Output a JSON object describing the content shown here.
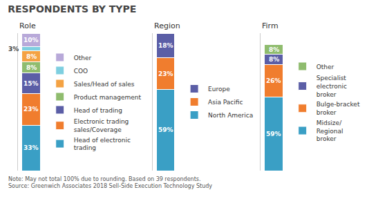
{
  "title": "RESPONDENTS BY TYPE",
  "annotations": [
    "Note: May not total 100% due to rounding. Based on 39 respondents.\nSource: Greenwich Associates 2018 Sell-Side Execution Technology Study"
  ],
  "chart_data": [
    {
      "type": "bar",
      "title": "Role",
      "stacked": true,
      "data_labels": true,
      "legend": "right",
      "categories": [
        null
      ],
      "ylim": [
        0,
        100
      ],
      "grid": false,
      "tick_labels": false,
      "series": [
        {
          "name": "Head of electronic\ntrading",
          "color": "#3a9fc5",
          "values": [
            33
          ],
          "value_labels": [
            "33%"
          ]
        },
        {
          "name": "Electronic trading\nsales/Coverage",
          "color": "#f07d2e",
          "values": [
            23
          ],
          "value_labels": [
            "23%"
          ]
        },
        {
          "name": "Head of trading",
          "color": "#5b5ea6",
          "values": [
            15
          ],
          "value_labels": [
            "15%"
          ]
        },
        {
          "name": "Product management",
          "color": "#8fbc6e",
          "values": [
            8
          ],
          "value_labels": [
            "8%"
          ]
        },
        {
          "name": "Sales/Head of sales",
          "color": "#f4a243",
          "values": [
            8
          ],
          "value_labels": [
            "8%"
          ]
        },
        {
          "name": "COO",
          "color": "#7ecfe0",
          "values": [
            3
          ],
          "value_labels": [
            "3%"
          ]
        },
        {
          "name": "Other",
          "color": "#b8a9d9",
          "values": [
            10
          ],
          "value_labels": [
            "10%"
          ]
        }
      ]
    },
    {
      "type": "bar",
      "title": "Region",
      "stacked": true,
      "data_labels": true,
      "legend": "right",
      "categories": [
        null
      ],
      "ylim": [
        0,
        100
      ],
      "grid": false,
      "tick_labels": false,
      "series": [
        {
          "name": "North America",
          "color": "#3a9fc5",
          "values": [
            59
          ],
          "value_labels": [
            "59%"
          ]
        },
        {
          "name": "Asia Pacific",
          "color": "#f07d2e",
          "values": [
            23
          ],
          "value_labels": [
            "23%"
          ]
        },
        {
          "name": "Europe",
          "color": "#5b5ea6",
          "values": [
            18
          ],
          "value_labels": [
            "18%"
          ]
        }
      ]
    },
    {
      "type": "bar",
      "title": "Firm",
      "stacked": true,
      "data_labels": true,
      "legend": "right",
      "categories": [
        null
      ],
      "ylim": [
        0,
        110
      ],
      "grid": false,
      "tick_labels": false,
      "series": [
        {
          "name": "Midsize/\nRegional\nbroker",
          "color": "#3a9fc5",
          "values": [
            59
          ],
          "value_labels": [
            "59%"
          ]
        },
        {
          "name": "Bulge-bracket\nbroker",
          "color": "#f07d2e",
          "values": [
            26
          ],
          "value_labels": [
            "26%"
          ]
        },
        {
          "name": "Specialist\nelectronic\nbroker",
          "color": "#5b5ea6",
          "values": [
            8
          ],
          "value_labels": [
            "8%"
          ]
        },
        {
          "name": "Other",
          "color": "#8fbc6e",
          "values": [
            8
          ],
          "value_labels": [
            "8%"
          ]
        }
      ]
    }
  ]
}
